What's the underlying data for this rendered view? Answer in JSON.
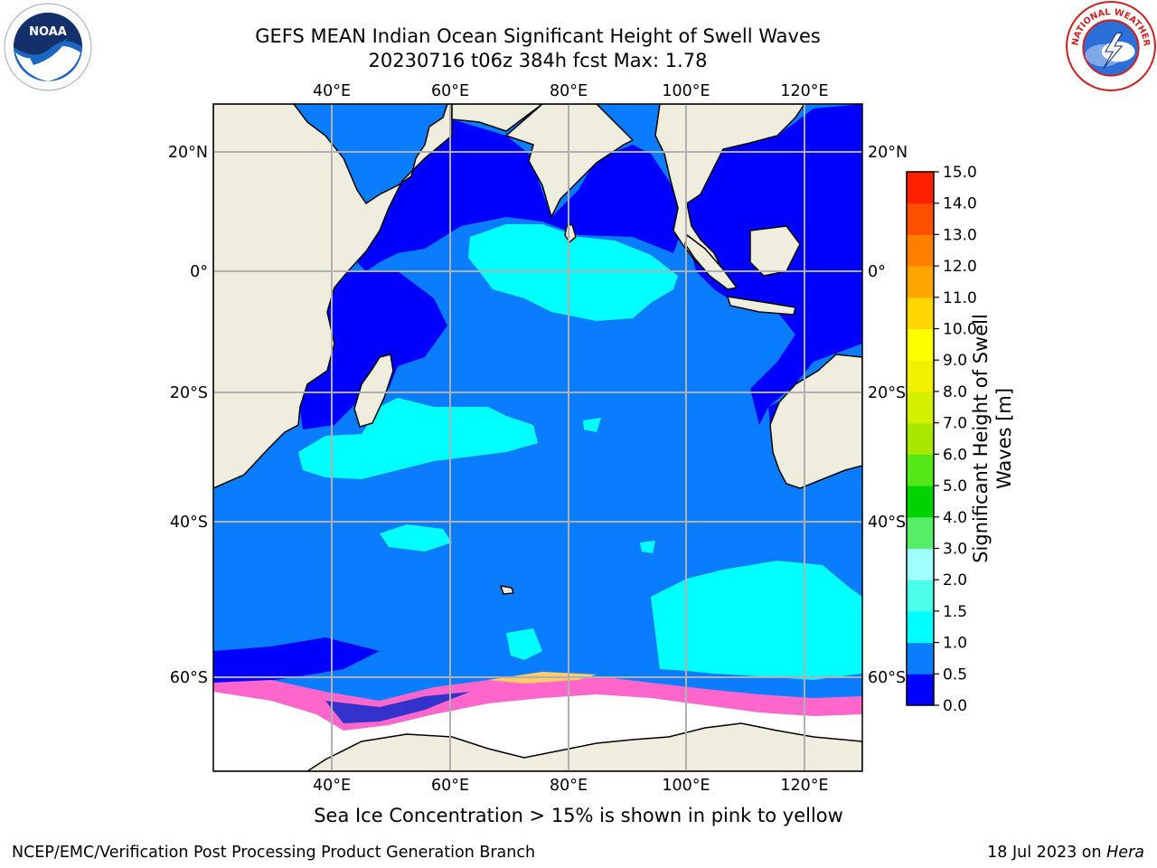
{
  "header": {
    "title_line1": "GEFS MEAN Indian Ocean Significant Height of Swell Waves",
    "title_line2": "20230716 t06z 384h fcst   Max: 1.78"
  },
  "logos": {
    "left": "NOAA",
    "right": "NATIONAL WEATHER SERVICE"
  },
  "map": {
    "lon_labels": [
      "40°E",
      "60°E",
      "80°E",
      "100°E",
      "120°E"
    ],
    "lat_labels": [
      "20°N",
      "0°",
      "20°S",
      "40°S",
      "60°S"
    ],
    "lon_range": [
      20,
      130
    ],
    "lat_range": [
      -72,
      28
    ],
    "land_color": "#eeedde",
    "ice_color": "#ffffff"
  },
  "colorbar": {
    "label_line1": "Significant Height of Swell",
    "label_line2": "Waves [m]",
    "ticks": [
      "0.0",
      "0.5",
      "1.0",
      "1.5",
      "2.0",
      "3.0",
      "4.0",
      "5.0",
      "6.0",
      "7.0",
      "8.0",
      "9.0",
      "10.0",
      "11.0",
      "12.0",
      "13.0",
      "14.0",
      "15.0"
    ],
    "colors": [
      "#0000ff",
      "#0a7dff",
      "#00ffff",
      "#4cffe8",
      "#a0ffff",
      "#55ee66",
      "#00d400",
      "#55e818",
      "#a8e800",
      "#d4f000",
      "#f0f000",
      "#ffff00",
      "#ffd700",
      "#ffa500",
      "#ff8000",
      "#ff5000",
      "#ff2000"
    ]
  },
  "caption": "Sea Ice Concentration > 15% is shown in pink to yellow",
  "footer": {
    "left": "NCEP/EMC/Verification Post Processing Product Generation Branch",
    "right_prefix": "18 Jul 2023 on ",
    "right_host": "Hera"
  }
}
